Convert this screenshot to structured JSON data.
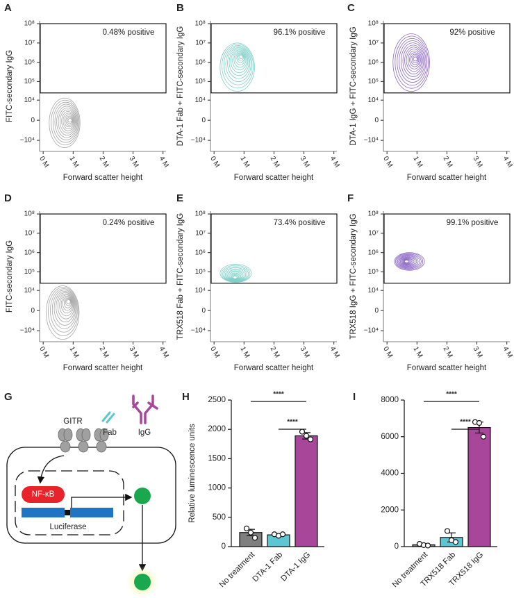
{
  "panel_labels": [
    "A",
    "B",
    "C",
    "D",
    "E",
    "F",
    "G",
    "H",
    "I"
  ],
  "diagram": {
    "receptor": "GITR",
    "fab": "Fab",
    "igg": "IgG",
    "factor": "NF-κB",
    "reporter": "Luciferase"
  },
  "chart_data": [
    {
      "type": "contour",
      "ylabel": "FITC-secondary IgG",
      "xlabel": "Forward scatter height",
      "annotation": "0.48% positive",
      "color": "#a6a6a6",
      "xlim": [
        -120000,
        4100000
      ],
      "xticks": [
        {
          "value": 0,
          "label": "0 M"
        },
        {
          "value": 1000000,
          "label": "1 M"
        },
        {
          "value": 2000000,
          "label": "2 M"
        },
        {
          "value": 3000000,
          "label": "3 M"
        },
        {
          "value": 4000000,
          "label": "4 M"
        }
      ],
      "ylim": [
        -40000,
        140000000
      ],
      "yscale": "biexponential",
      "yticks": [
        {
          "value": 100000000,
          "label": "10⁸"
        },
        {
          "value": 10000000,
          "label": "10⁷"
        },
        {
          "value": 1000000,
          "label": "10⁶"
        },
        {
          "value": 100000,
          "label": "10⁵"
        },
        {
          "value": 10000,
          "label": "10⁴"
        },
        0,
        {
          "value": -10000,
          "label": "−10⁴"
        }
      ],
      "gate": [
        25000,
        100000000
      ],
      "population": {
        "x": [
          200000,
          1230000
        ],
        "y": [
          -25000,
          13000
        ]
      },
      "peak": {
        "x": 900000,
        "y": 0
      }
    },
    {
      "type": "contour",
      "ylabel": "DTA-1 Fab + FITC-secondary IgG",
      "xlabel": "Forward scatter height",
      "annotation": "96.1% positive",
      "color": "#7fcfc8",
      "xlim": [
        -120000,
        4100000
      ],
      "xticks": [
        {
          "value": 0,
          "label": "0 M"
        },
        {
          "value": 1000000,
          "label": "1 M"
        },
        {
          "value": 2000000,
          "label": "2 M"
        },
        {
          "value": 3000000,
          "label": "3 M"
        },
        {
          "value": 4000000,
          "label": "4 M"
        }
      ],
      "ylim": [
        -40000,
        140000000
      ],
      "yscale": "biexponential",
      "yticks": [
        {
          "value": 100000000,
          "label": "10⁸"
        },
        {
          "value": 10000000,
          "label": "10⁷"
        },
        {
          "value": 1000000,
          "label": "10⁶"
        },
        {
          "value": 100000,
          "label": "10⁵"
        },
        {
          "value": 10000,
          "label": "10⁴"
        },
        0,
        {
          "value": -10000,
          "label": "−10⁴"
        }
      ],
      "gate": [
        25000,
        100000000
      ],
      "population": {
        "x": [
          200000,
          1350000
        ],
        "y": [
          30000,
          10000000
        ]
      },
      "peak": {
        "x": 900000,
        "y": 2000000
      }
    },
    {
      "type": "contour",
      "ylabel": "DTA-1 IgG + FITC-secondary IgG",
      "xlabel": "Forward scatter height",
      "annotation": "92% positive",
      "color": "#8c68c6",
      "xlim": [
        -120000,
        4100000
      ],
      "xticks": [
        {
          "value": 0,
          "label": "0 M"
        },
        {
          "value": 1000000,
          "label": "1 M"
        },
        {
          "value": 2000000,
          "label": "2 M"
        },
        {
          "value": 3000000,
          "label": "3 M"
        },
        {
          "value": 4000000,
          "label": "4 M"
        }
      ],
      "ylim": [
        -40000,
        140000000
      ],
      "yscale": "biexponential",
      "yticks": [
        {
          "value": 100000000,
          "label": "10⁸"
        },
        {
          "value": 10000000,
          "label": "10⁷"
        },
        {
          "value": 1000000,
          "label": "10⁶"
        },
        {
          "value": 100000,
          "label": "10⁵"
        },
        {
          "value": 10000,
          "label": "10⁴"
        },
        0,
        {
          "value": -10000,
          "label": "−10⁴"
        }
      ],
      "gate": [
        25000,
        100000000
      ],
      "population": {
        "x": [
          200000,
          1420000
        ],
        "y": [
          30000,
          30000000
        ]
      },
      "peak": {
        "x": 950000,
        "y": 1500000
      }
    },
    {
      "type": "contour",
      "ylabel": "FITC-secondary IgG",
      "xlabel": "Forward scatter height",
      "annotation": "0.24% positive",
      "color": "#a6a6a6",
      "xlim": [
        -120000,
        4100000
      ],
      "xticks": [
        {
          "value": 0,
          "label": "0 M"
        },
        {
          "value": 1000000,
          "label": "1 M"
        },
        {
          "value": 2000000,
          "label": "2 M"
        },
        {
          "value": 3000000,
          "label": "3 M"
        },
        {
          "value": 4000000,
          "label": "4 M"
        }
      ],
      "ylim": [
        -40000,
        140000000
      ],
      "yscale": "biexponential",
      "yticks": [
        {
          "value": 100000000,
          "label": "10⁸"
        },
        {
          "value": 10000000,
          "label": "10⁷"
        },
        {
          "value": 1000000,
          "label": "10⁶"
        },
        {
          "value": 100000,
          "label": "10⁵"
        },
        {
          "value": 10000,
          "label": "10⁴"
        },
        0,
        {
          "value": -10000,
          "label": "−10⁴"
        }
      ],
      "gate": [
        25000,
        100000000
      ],
      "population": {
        "x": [
          100000,
          1200000
        ],
        "y": [
          -30000,
          18000
        ]
      },
      "peak": {
        "x": 850000,
        "y": 2000
      }
    },
    {
      "type": "contour",
      "ylabel": "TRX518 Fab + FITC-secondary IgG",
      "xlabel": "Forward scatter height",
      "annotation": "73.4% positive",
      "color": "#7fcfc8",
      "xlim": [
        -120000,
        4100000
      ],
      "xticks": [
        {
          "value": 0,
          "label": "0 M"
        },
        {
          "value": 1000000,
          "label": "1 M"
        },
        {
          "value": 2000000,
          "label": "2 M"
        },
        {
          "value": 3000000,
          "label": "3 M"
        },
        {
          "value": 4000000,
          "label": "4 M"
        }
      ],
      "ylim": [
        -40000,
        140000000
      ],
      "yscale": "biexponential",
      "yticks": [
        {
          "value": 100000000,
          "label": "10⁸"
        },
        {
          "value": 10000000,
          "label": "10⁷"
        },
        {
          "value": 1000000,
          "label": "10⁶"
        },
        {
          "value": 100000,
          "label": "10⁵"
        },
        {
          "value": 10000,
          "label": "10⁴"
        },
        0,
        {
          "value": -10000,
          "label": "−10⁴"
        }
      ],
      "gate": [
        25000,
        100000000
      ],
      "population": {
        "x": [
          200000,
          1250000
        ],
        "y": [
          28000,
          250000
        ]
      },
      "peak": {
        "x": 700000,
        "y": 50000
      }
    },
    {
      "type": "contour",
      "ylabel": "TRX518 IgG + FITC-secondary IgG",
      "xlabel": "Forward scatter height",
      "annotation": "99.1% positive",
      "color": "#8c68c6",
      "xlim": [
        -120000,
        4100000
      ],
      "xticks": [
        {
          "value": 0,
          "label": "0 M"
        },
        {
          "value": 1000000,
          "label": "1 M"
        },
        {
          "value": 2000000,
          "label": "2 M"
        },
        {
          "value": 3000000,
          "label": "3 M"
        },
        {
          "value": 4000000,
          "label": "4 M"
        }
      ],
      "ylim": [
        -40000,
        140000000
      ],
      "yscale": "biexponential",
      "yticks": [
        {
          "value": 100000000,
          "label": "10⁸"
        },
        {
          "value": 10000000,
          "label": "10⁷"
        },
        {
          "value": 1000000,
          "label": "10⁶"
        },
        {
          "value": 100000,
          "label": "10⁵"
        },
        {
          "value": 10000,
          "label": "10⁴"
        },
        0,
        {
          "value": -10000,
          "label": "−10⁴"
        }
      ],
      "gate": [
        25000,
        100000000
      ],
      "population": {
        "x": [
          250000,
          1250000
        ],
        "y": [
          120000,
          1000000
        ]
      },
      "peak": {
        "x": 650000,
        "y": 350000
      }
    },
    {
      "type": "bar",
      "ylabel": "Relative luminescence units",
      "categories": [
        "No treatment",
        "DTA-1 Fab",
        "DTA-1 IgG"
      ],
      "values": [
        240,
        200,
        1890
      ],
      "errors": [
        55,
        20,
        55
      ],
      "points": [
        [
          310,
          240,
          150
        ],
        [
          210,
          185,
          210
        ],
        [
          1960,
          1890,
          1830
        ]
      ],
      "colors": [
        "#7f7f7f",
        "#5cc6d3",
        "#a8479a"
      ],
      "ylim": [
        0,
        2500
      ],
      "yticks": [
        0,
        500,
        1000,
        1500,
        2000,
        2500
      ],
      "significance": [
        {
          "between": [
            "No treatment",
            "DTA-1 IgG"
          ],
          "label": "****"
        },
        {
          "between": [
            "DTA-1 Fab",
            "DTA-1 IgG"
          ],
          "label": "****"
        }
      ]
    },
    {
      "type": "bar",
      "categories": [
        "No treatment",
        "TRX518 Fab",
        "TRX518 IgG"
      ],
      "values": [
        100,
        500,
        6500
      ],
      "errors": [
        40,
        250,
        300
      ],
      "points": [
        [
          150,
          80,
          60
        ],
        [
          850,
          350,
          250
        ],
        [
          6800,
          6750,
          6000
        ]
      ],
      "colors": [
        "#7f7f7f",
        "#5cc6d3",
        "#a8479a"
      ],
      "ylim": [
        0,
        8000
      ],
      "yticks": [
        0,
        2000,
        4000,
        6000,
        8000
      ],
      "significance": [
        {
          "between": [
            "No treatment",
            "TRX518 IgG"
          ],
          "label": "****"
        },
        {
          "between": [
            "TRX518 Fab",
            "TRX518 IgG"
          ],
          "label": "****"
        }
      ]
    }
  ]
}
